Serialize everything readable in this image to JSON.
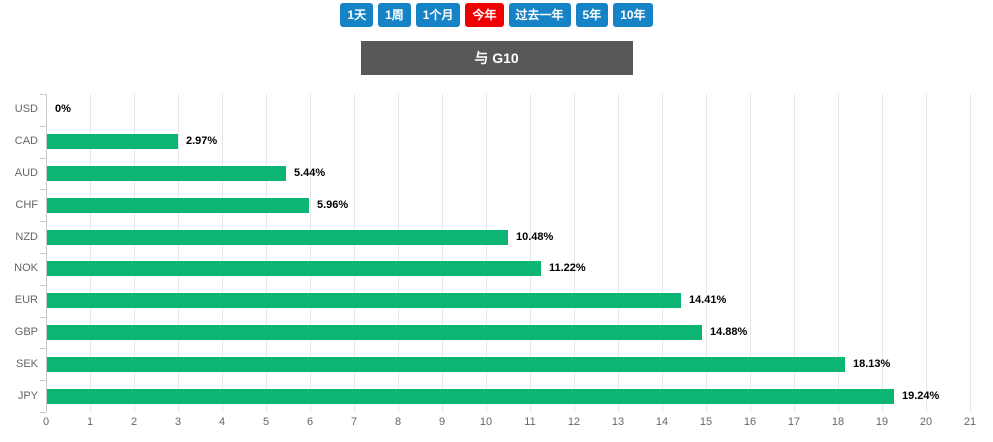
{
  "toolbar": {
    "buttons": [
      {
        "id": "1d",
        "label": "1天",
        "active": false
      },
      {
        "id": "1w",
        "label": "1周",
        "active": false
      },
      {
        "id": "1m",
        "label": "1个月",
        "active": false
      },
      {
        "id": "ytd",
        "label": "今年",
        "active": true
      },
      {
        "id": "1y",
        "label": "过去一年",
        "active": false
      },
      {
        "id": "5y",
        "label": "5年",
        "active": false
      },
      {
        "id": "10y",
        "label": "10年",
        "active": false
      }
    ],
    "button_color": "#1583c5",
    "active_color": "#ee0000"
  },
  "header": {
    "title": "与 G10",
    "background": "#565859"
  },
  "chart_data": {
    "type": "bar",
    "orientation": "horizontal",
    "title": "与 G10",
    "categories": [
      "USD",
      "CAD",
      "AUD",
      "CHF",
      "NZD",
      "NOK",
      "EUR",
      "GBP",
      "SEK",
      "JPY"
    ],
    "values": [
      0,
      2.97,
      5.44,
      5.96,
      10.48,
      11.22,
      14.41,
      14.88,
      18.13,
      19.24
    ],
    "data_labels": [
      "0%",
      "2.97%",
      "5.44%",
      "5.96%",
      "10.48%",
      "11.22%",
      "14.41%",
      "14.88%",
      "18.13%",
      "19.24%"
    ],
    "xlim": [
      0,
      21
    ],
    "x_ticks": [
      0,
      1,
      2,
      3,
      4,
      5,
      6,
      7,
      8,
      9,
      10,
      11,
      12,
      13,
      14,
      15,
      16,
      17,
      18,
      19,
      20,
      21
    ],
    "xlabel": "",
    "ylabel": "",
    "unit": "%",
    "bar_color": "#0db575",
    "grid": true,
    "legend": false
  }
}
